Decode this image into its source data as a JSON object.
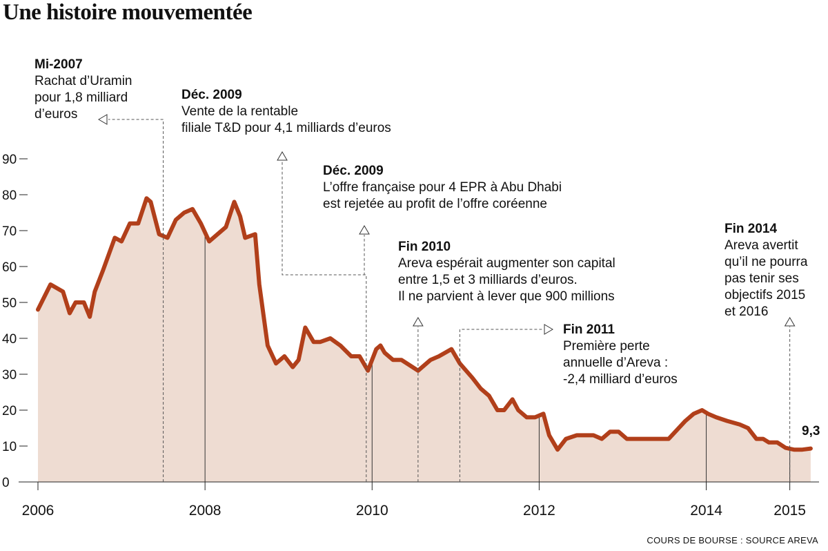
{
  "title": "Une histoire mouvementée",
  "source": "COURS DE BOURSE : SOURCE AREVA",
  "end_label": "9,3",
  "colors": {
    "line": "#b13f1a",
    "area": "#eedcd2",
    "text": "#111111"
  },
  "annotations": [
    {
      "head": "Mi-2007",
      "lines": [
        "Rachat d’Uramin",
        "pour 1,8 milliard",
        "d’euros"
      ]
    },
    {
      "head": "Déc. 2009",
      "lines": [
        "Vente de la rentable",
        "filiale T&D pour 4,1 milliards d’euros"
      ]
    },
    {
      "head": "Déc. 2009",
      "lines": [
        "L’offre française pour 4 EPR à Abu Dhabi",
        "est rejetée au profit de l’offre coréenne"
      ]
    },
    {
      "head": "Fin 2010",
      "lines": [
        "Areva espérait augmenter son capital",
        "entre 1,5 et 3 milliards d’euros.",
        "Il ne parvient à lever que 900 millions"
      ]
    },
    {
      "head": "Fin 2011",
      "lines": [
        "Première perte",
        "annuelle d’Areva :",
        "-2,4 milliard d’euros"
      ]
    },
    {
      "head": "Fin 2014",
      "lines": [
        "Areva avertit",
        "qu’il ne pourra",
        "pas tenir ses",
        "objectifs 2015",
        "et 2016"
      ]
    }
  ],
  "chart_data": {
    "type": "area",
    "title": "Une histoire mouvementée",
    "xlabel": "",
    "ylabel": "",
    "ylim": [
      0,
      90
    ],
    "xlim": [
      2006,
      2015.35
    ],
    "yticks": [
      0,
      10,
      20,
      30,
      40,
      50,
      60,
      70,
      80,
      90
    ],
    "xticks": [
      {
        "label": "2006",
        "value": 2006
      },
      {
        "label": "2008",
        "value": 2008
      },
      {
        "label": "2010",
        "value": 2010
      },
      {
        "label": "2012",
        "value": 2012
      },
      {
        "label": "2014",
        "value": 2014
      },
      {
        "label": "2015",
        "value": 2015
      }
    ],
    "grid": false,
    "legend": "none",
    "series": [
      {
        "x": [
          2006.0,
          2006.15,
          2006.3,
          2006.38,
          2006.45,
          2006.55,
          2006.62,
          2006.68,
          2006.78,
          2006.92,
          2007.0,
          2007.1,
          2007.2,
          2007.3,
          2007.35,
          2007.45,
          2007.55,
          2007.65,
          2007.75,
          2007.85,
          2007.95,
          2008.05,
          2008.15,
          2008.25,
          2008.35,
          2008.42,
          2008.48,
          2008.6,
          2008.65,
          2008.75,
          2008.85,
          2008.95,
          2009.05,
          2009.12,
          2009.2,
          2009.3,
          2009.38,
          2009.5,
          2009.62,
          2009.75,
          2009.85,
          2009.95,
          2010.05,
          2010.1,
          2010.15,
          2010.25,
          2010.35,
          2010.55,
          2010.7,
          2010.8,
          2010.95,
          2011.05,
          2011.2,
          2011.3,
          2011.4,
          2011.5,
          2011.58,
          2011.68,
          2011.75,
          2011.85,
          2011.95,
          2012.05,
          2012.12,
          2012.22,
          2012.32,
          2012.45,
          2012.55,
          2012.65,
          2012.75,
          2012.85,
          2012.95,
          2013.05,
          2013.12,
          2013.22,
          2013.35,
          2013.55,
          2013.75,
          2013.85,
          2013.95,
          2014.02,
          2014.12,
          2014.25,
          2014.4,
          2014.5,
          2014.6,
          2014.68,
          2014.75,
          2014.85,
          2014.95,
          2015.05,
          2015.15,
          2015.25
        ],
        "values": [
          48,
          55,
          53,
          47,
          50,
          50,
          46,
          53,
          59,
          68,
          67,
          72,
          72,
          79,
          78,
          69,
          68,
          73,
          75,
          76,
          72,
          67,
          69,
          71,
          78,
          74,
          68,
          69,
          55,
          38,
          33,
          35,
          32,
          34,
          43,
          39,
          39,
          40,
          38,
          35,
          35,
          31,
          37,
          38,
          36,
          34,
          34,
          31,
          34,
          35,
          37,
          33,
          29,
          26,
          24,
          20,
          20,
          23,
          20,
          18,
          18,
          19,
          13,
          9,
          12,
          13,
          13,
          13,
          12,
          14,
          14,
          12,
          12,
          12,
          12,
          12,
          17,
          19,
          20,
          19,
          18,
          17,
          16,
          15,
          12,
          12,
          11,
          11,
          9.5,
          9,
          9,
          9.3
        ]
      }
    ],
    "annotations": [
      {
        "label": "Mi-2007",
        "x": 2007.5
      },
      {
        "label": "Déc. 2009",
        "x": 2009.93
      },
      {
        "label": "Fin 2010",
        "x": 2010.55
      },
      {
        "label": "Fin 2011",
        "x": 2011.05
      },
      {
        "label": "Fin 2014",
        "x": 2015.0
      }
    ],
    "final_value": 9.3
  }
}
